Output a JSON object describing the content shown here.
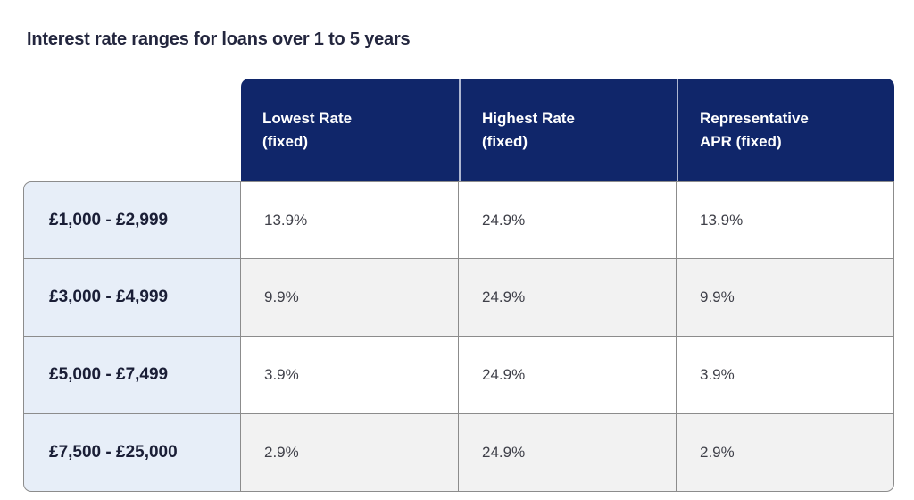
{
  "page": {
    "title": "Interest rate ranges for loans over 1 to 5 years"
  },
  "table": {
    "headers": {
      "lowest_rate": "Lowest Rate\n(fixed)",
      "highest_rate": "Highest Rate\n(fixed)",
      "representative_apr": "Representative\nAPR (fixed)"
    },
    "rows": [
      {
        "range": "£1,000 - £2,999",
        "lowest_rate": "13.9%",
        "highest_rate": "24.9%",
        "representative_apr": "13.9%"
      },
      {
        "range": "£3,000 - £4,999",
        "lowest_rate": "9.9%",
        "highest_rate": "24.9%",
        "representative_apr": "9.9%"
      },
      {
        "range": "£5,000 - £7,499",
        "lowest_rate": "3.9%",
        "highest_rate": "24.9%",
        "representative_apr": "3.9%"
      },
      {
        "range": "£7,500 - £25,000",
        "lowest_rate": "2.9%",
        "highest_rate": "24.9%",
        "representative_apr": "2.9%"
      }
    ]
  },
  "colors": {
    "header_background": "#10266A",
    "header_text": "#FFFFFF",
    "header_divider": "#AEB7D2",
    "row_header_background": "#E7EEF8",
    "stripe_background": "#F2F2F2",
    "cell_border": "#8C8C8C",
    "title_text": "#23263E",
    "body_text": "#3F4049"
  }
}
